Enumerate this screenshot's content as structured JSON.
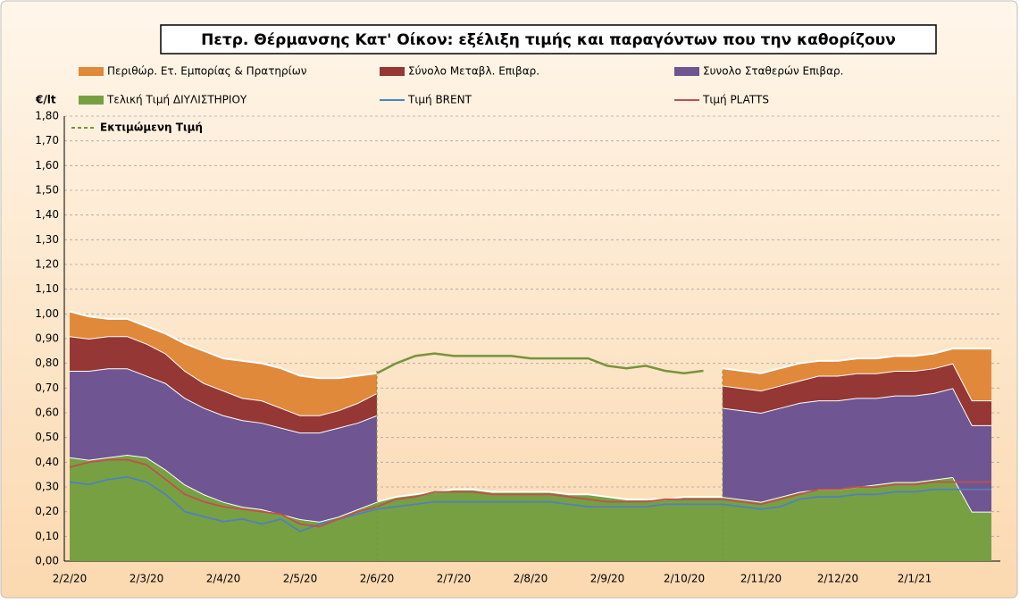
{
  "chart_data": {
    "type": "area",
    "title": "Πετρ. Θέρμανσης Κατ' Οίκον: εξέλιξη τιμής και παραγόντων που την καθορίζουν",
    "ylabel": "€/lt",
    "categories": [
      "2/2/20",
      null,
      null,
      null,
      "2/3/20",
      null,
      null,
      null,
      "2/4/20",
      null,
      null,
      null,
      "2/5/20",
      null,
      null,
      null,
      "2/6/20",
      null,
      null,
      null,
      "2/7/20",
      null,
      null,
      null,
      "2/8/20",
      null,
      null,
      null,
      "2/9/20",
      null,
      null,
      null,
      "2/10/20",
      null,
      null,
      null,
      "2/11/20",
      null,
      null,
      null,
      "2/12/20",
      null,
      null,
      null,
      "2/1/21",
      null,
      null,
      null,
      null
    ],
    "ylim": [
      0,
      1.8
    ],
    "yticks": [
      {
        "value": 0,
        "label": "0,00"
      },
      {
        "value": 0.1,
        "label": "0,10"
      },
      {
        "value": 0.2,
        "label": "0,20"
      },
      {
        "value": 0.3,
        "label": "0,30"
      },
      {
        "value": 0.4,
        "label": "0,40"
      },
      {
        "value": 0.5,
        "label": "0,50"
      },
      {
        "value": 0.6,
        "label": "0,60"
      },
      {
        "value": 0.7,
        "label": "0,70"
      },
      {
        "value": 0.8,
        "label": "0,80"
      },
      {
        "value": 0.9,
        "label": "0,90"
      },
      {
        "value": 1,
        "label": "1,00"
      },
      {
        "value": 1.1,
        "label": "1,10"
      },
      {
        "value": 1.2,
        "label": "1,20"
      },
      {
        "value": 1.3,
        "label": "1,30"
      },
      {
        "value": 1.4,
        "label": "1,40"
      },
      {
        "value": 1.5,
        "label": "1,50"
      },
      {
        "value": 1.6,
        "label": "1,60"
      },
      {
        "value": 1.7,
        "label": "1,70"
      },
      {
        "value": 1.8,
        "label": "1,80"
      }
    ],
    "grid": true,
    "stacked": true,
    "series": [
      {
        "name": "Τελική Τιμή ΔΙΥΛΙΣΤΗΡΙΟΥ",
        "type": "area",
        "color": "#77a043",
        "values": [
          0.42,
          0.41,
          0.42,
          0.43,
          0.42,
          0.37,
          0.31,
          0.27,
          0.24,
          0.22,
          0.21,
          0.19,
          0.17,
          0.16,
          0.18,
          0.21,
          0.24,
          0.26,
          0.27,
          0.28,
          0.29,
          0.29,
          0.28,
          0.28,
          0.28,
          0.28,
          0.27,
          0.27,
          0.26,
          0.25,
          0.25,
          0.25,
          0.26,
          0.26,
          0.26,
          0.25,
          0.24,
          0.26,
          0.28,
          0.29,
          0.29,
          0.3,
          0.31,
          0.32,
          0.32,
          0.33,
          0.34,
          0.2,
          0.2
        ]
      },
      {
        "name": "Συνολο Σταθερών Επιβαρ.",
        "type": "area",
        "color": "#6f5591",
        "values": [
          0.35,
          0.36,
          0.36,
          0.35,
          0.33,
          0.35,
          0.35,
          0.35,
          0.35,
          0.35,
          0.35,
          0.35,
          0.35,
          0.36,
          0.36,
          0.35,
          0.35,
          null,
          null,
          null,
          null,
          null,
          null,
          null,
          null,
          null,
          null,
          null,
          null,
          null,
          null,
          null,
          null,
          null,
          0.36,
          0.36,
          0.36,
          0.36,
          0.36,
          0.36,
          0.36,
          0.36,
          0.35,
          0.35,
          0.35,
          0.35,
          0.36,
          0.35,
          0.35
        ]
      },
      {
        "name": "Σύνολο Μεταβλ. Επιβαρ.",
        "type": "area",
        "color": "#953735",
        "values": [
          0.14,
          0.13,
          0.13,
          0.13,
          0.13,
          0.12,
          0.11,
          0.1,
          0.1,
          0.09,
          0.09,
          0.08,
          0.07,
          0.07,
          0.07,
          0.08,
          0.09,
          null,
          null,
          null,
          null,
          null,
          null,
          null,
          null,
          null,
          null,
          null,
          null,
          null,
          null,
          null,
          null,
          null,
          0.09,
          0.09,
          0.09,
          0.09,
          0.09,
          0.1,
          0.1,
          0.1,
          0.1,
          0.1,
          0.1,
          0.1,
          0.1,
          0.1,
          0.1
        ]
      },
      {
        "name": "Περιθώρ. Ετ. Εμπορίας & Πρατηρίων",
        "type": "area",
        "color": "#e0893a",
        "values": [
          0.1,
          0.09,
          0.07,
          0.07,
          0.07,
          0.08,
          0.11,
          0.13,
          0.13,
          0.15,
          0.15,
          0.16,
          0.16,
          0.15,
          0.13,
          0.11,
          0.08,
          null,
          null,
          null,
          null,
          null,
          null,
          null,
          null,
          null,
          null,
          null,
          null,
          null,
          null,
          null,
          null,
          null,
          0.07,
          0.07,
          0.07,
          0.07,
          0.07,
          0.06,
          0.06,
          0.06,
          0.06,
          0.06,
          0.06,
          0.06,
          0.06,
          0.21,
          0.21
        ]
      },
      {
        "name": "Τιμή BRENT",
        "type": "line",
        "color": "#4f81bd",
        "values": [
          0.32,
          0.31,
          0.33,
          0.34,
          0.32,
          0.27,
          0.2,
          0.18,
          0.16,
          0.17,
          0.15,
          0.17,
          0.12,
          0.15,
          0.17,
          0.19,
          0.21,
          0.22,
          0.23,
          0.24,
          0.24,
          0.24,
          0.24,
          0.24,
          0.24,
          0.24,
          0.23,
          0.22,
          0.22,
          0.22,
          0.22,
          0.23,
          0.23,
          0.23,
          0.23,
          0.22,
          0.21,
          0.22,
          0.25,
          0.26,
          0.26,
          0.27,
          0.27,
          0.28,
          0.28,
          0.29,
          0.29,
          0.29,
          0.29
        ]
      },
      {
        "name": "Τιμή PLATTS",
        "type": "line",
        "color": "#c0504d",
        "values": [
          0.38,
          0.4,
          0.41,
          0.41,
          0.39,
          0.33,
          0.27,
          0.24,
          0.22,
          0.21,
          0.2,
          0.19,
          0.15,
          0.14,
          0.17,
          0.2,
          0.22,
          0.25,
          0.26,
          0.28,
          0.28,
          0.28,
          0.27,
          0.27,
          0.27,
          0.27,
          0.26,
          0.25,
          0.24,
          0.24,
          0.24,
          0.25,
          0.25,
          0.25,
          0.25,
          0.24,
          0.23,
          0.25,
          0.27,
          0.29,
          0.29,
          0.3,
          0.3,
          0.31,
          0.31,
          0.32,
          0.32,
          0.32,
          0.32
        ]
      },
      {
        "name": "Εκτιμώμενη Τιμή",
        "type": "line",
        "dashed": true,
        "color": "#77933c",
        "values": [
          null,
          null,
          null,
          null,
          null,
          null,
          null,
          null,
          null,
          null,
          null,
          null,
          null,
          null,
          null,
          null,
          0.76,
          0.8,
          0.83,
          0.84,
          0.83,
          0.83,
          0.83,
          0.83,
          0.82,
          0.82,
          0.82,
          0.82,
          0.79,
          0.78,
          0.79,
          0.77,
          0.76,
          0.77,
          null,
          null,
          null,
          null,
          null,
          null,
          null,
          null,
          null,
          null,
          null,
          null,
          null,
          null,
          null
        ]
      }
    ]
  }
}
